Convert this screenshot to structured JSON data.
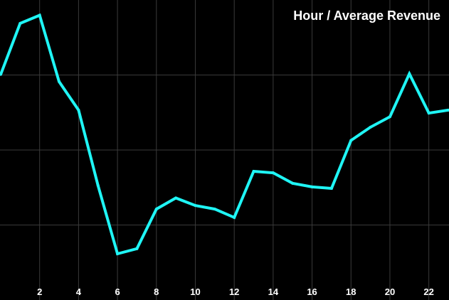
{
  "chart_data": {
    "type": "line",
    "title": "Hour / Average Revenue",
    "xlabel": "",
    "ylabel": "",
    "x": [
      0,
      1,
      2,
      3,
      4,
      5,
      6,
      7,
      8,
      9,
      10,
      11,
      12,
      13,
      14,
      15,
      16,
      17,
      18,
      19,
      20,
      21,
      22,
      23
    ],
    "x_tick_values": [
      2,
      4,
      6,
      8,
      10,
      12,
      14,
      16,
      18,
      20,
      22
    ],
    "x_tick_labels": [
      "2",
      "4",
      "6",
      "8",
      "10",
      "12",
      "14",
      "16",
      "18",
      "20",
      "22"
    ],
    "xlim": [
      0,
      23
    ],
    "ylim": [
      0,
      100
    ],
    "y_grid_values": [
      25,
      50,
      75
    ],
    "grid": true,
    "series": [
      {
        "name": "",
        "color": "#1ff5f5",
        "values": [
          75.2,
          92.2,
          94.9,
          72.8,
          63.3,
          38.2,
          15.4,
          17.1,
          30.3,
          34.0,
          31.5,
          30.3,
          27.5,
          42.9,
          42.4,
          38.9,
          37.7,
          37.2,
          53.2,
          57.6,
          61.1,
          75.4,
          62.3,
          63.3
        ]
      }
    ]
  }
}
